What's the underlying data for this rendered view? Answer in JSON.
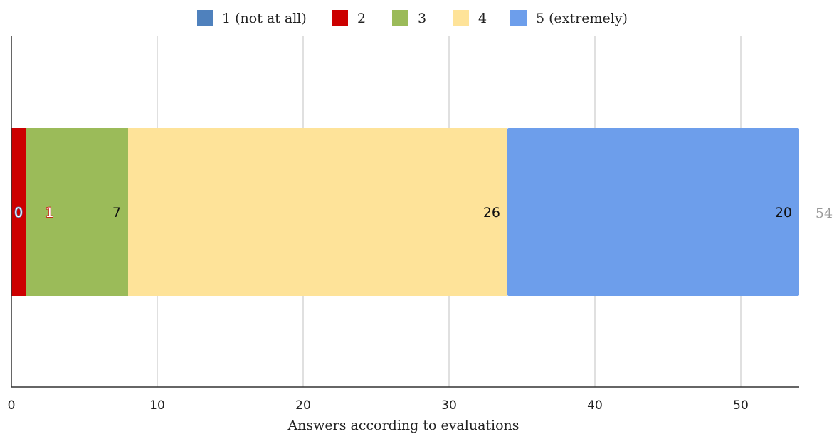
{
  "chart_data": {
    "type": "bar",
    "orientation": "horizontal",
    "stacked": true,
    "categories": [
      ""
    ],
    "series": [
      {
        "name": "1 (not at all)",
        "color": "#4f81bd",
        "values": [
          0
        ],
        "label": "0"
      },
      {
        "name": "2",
        "color": "#cc0000",
        "values": [
          1
        ],
        "label": "1"
      },
      {
        "name": "3",
        "color": "#9bbb59",
        "values": [
          7
        ],
        "label": "7"
      },
      {
        "name": "4",
        "color": "#fee399",
        "values": [
          26
        ],
        "label": "26"
      },
      {
        "name": "5 (extremely)",
        "color": "#6d9eeb",
        "values": [
          20
        ],
        "label": "20"
      }
    ],
    "total": 54,
    "total_label": "54",
    "xlabel": "Answers according to evaluations",
    "ylabel": "",
    "xlim": [
      0,
      54
    ],
    "xticks": [
      0,
      10,
      20,
      30,
      40,
      50
    ],
    "xtick_labels": [
      "0",
      "10",
      "20",
      "30",
      "40",
      "50"
    ],
    "grid": "vertical",
    "legend_position": "top-center"
  }
}
